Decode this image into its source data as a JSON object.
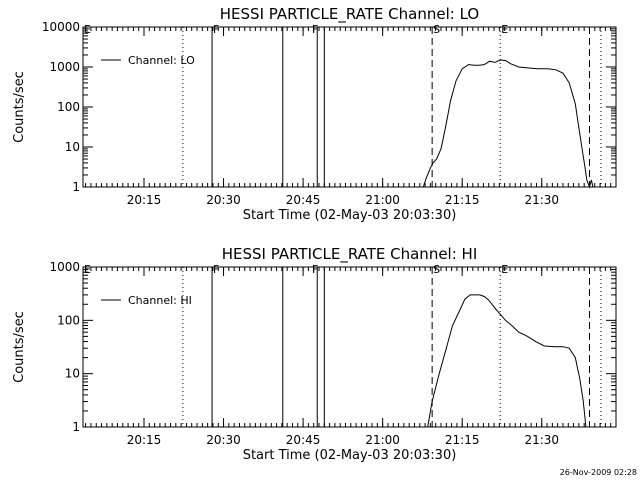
{
  "footer": {
    "timestamp": "26-Nov-2009 02:28"
  },
  "chart_data": [
    {
      "type": "line",
      "title": "HESSI PARTICLE_RATE Channel: LO",
      "xlabel": "Start Time (02-May-03 20:03:30)",
      "ylabel": "Counts/sec",
      "yscale": "log",
      "ylim": [
        1,
        10000
      ],
      "xlim": [
        "20:03:30",
        "21:44:00"
      ],
      "x_ticks": [
        "20:15",
        "20:30",
        "20:45",
        "21:00",
        "21:15",
        "21:30"
      ],
      "y_ticks": [
        "1",
        "10",
        "100",
        "1000",
        "10000"
      ],
      "grid": false,
      "legend": {
        "position": "top-left",
        "entries": [
          "Channel: LO"
        ]
      },
      "flag_labels": [
        {
          "text": "E",
          "x": "20:03:30"
        },
        {
          "text": "F",
          "x": "20:27:50"
        },
        {
          "text": "F",
          "x": "20:46:30"
        },
        {
          "text": "S",
          "x": "21:09:20"
        },
        {
          "text": "E",
          "x": "21:22:10"
        }
      ],
      "markers": [
        {
          "x": "20:22:20",
          "style": "dotted"
        },
        {
          "x": "20:27:50",
          "style": "solid"
        },
        {
          "x": "20:41:10",
          "style": "solid"
        },
        {
          "x": "20:47:40",
          "style": "solid"
        },
        {
          "x": "20:49:00",
          "style": "solid"
        },
        {
          "x": "21:09:20",
          "style": "dashed"
        },
        {
          "x": "21:22:10",
          "style": "dotted"
        },
        {
          "x": "21:39:00",
          "style": "dashed"
        },
        {
          "x": "21:41:10",
          "style": "dotted"
        }
      ],
      "series": [
        {
          "name": "Channel: LO",
          "x": [
            "21:07:40",
            "21:08:10",
            "21:09:00",
            "21:09:30",
            "21:10:10",
            "21:11:00",
            "21:11:50",
            "21:12:50",
            "21:13:50",
            "21:15:00",
            "21:16:10",
            "21:17:20",
            "21:18:10",
            "21:19:10",
            "21:20:10",
            "21:21:10",
            "21:22:10",
            "21:23:10",
            "21:24:10",
            "21:25:40",
            "21:27:20",
            "21:29:10",
            "21:31:10",
            "21:32:40",
            "21:34:00",
            "21:35:10",
            "21:36:20",
            "21:37:00",
            "21:37:40",
            "21:38:10",
            "21:38:30",
            "21:39:00",
            "21:39:20",
            "21:39:40"
          ],
          "y": [
            1,
            1.6,
            3,
            4,
            5,
            9,
            30,
            150,
            450,
            900,
            1150,
            1100,
            1100,
            1150,
            1400,
            1300,
            1500,
            1450,
            1200,
            1000,
            950,
            900,
            900,
            850,
            700,
            400,
            120,
            30,
            8,
            3,
            1.5,
            1,
            1.5,
            1
          ]
        }
      ]
    },
    {
      "type": "line",
      "title": "HESSI PARTICLE_RATE Channel: HI",
      "xlabel": "Start Time (02-May-03 20:03:30)",
      "ylabel": "Counts/sec",
      "yscale": "log",
      "ylim": [
        1,
        1000
      ],
      "xlim": [
        "20:03:30",
        "21:44:00"
      ],
      "x_ticks": [
        "20:15",
        "20:30",
        "20:45",
        "21:00",
        "21:15",
        "21:30"
      ],
      "y_ticks": [
        "1",
        "10",
        "100",
        "1000"
      ],
      "grid": false,
      "legend": {
        "position": "top-left",
        "entries": [
          "Channel: HI"
        ]
      },
      "flag_labels": [
        {
          "text": "E",
          "x": "20:03:30"
        },
        {
          "text": "F",
          "x": "20:27:50"
        },
        {
          "text": "F",
          "x": "20:46:30"
        },
        {
          "text": "S",
          "x": "21:09:20"
        },
        {
          "text": "E",
          "x": "21:22:10"
        }
      ],
      "markers": [
        {
          "x": "20:22:20",
          "style": "dotted"
        },
        {
          "x": "20:27:50",
          "style": "solid"
        },
        {
          "x": "20:41:10",
          "style": "solid"
        },
        {
          "x": "20:47:40",
          "style": "solid"
        },
        {
          "x": "20:49:00",
          "style": "solid"
        },
        {
          "x": "21:09:20",
          "style": "dashed"
        },
        {
          "x": "21:22:10",
          "style": "dotted"
        },
        {
          "x": "21:39:00",
          "style": "dashed"
        },
        {
          "x": "21:41:10",
          "style": "dotted"
        }
      ],
      "series": [
        {
          "name": "Channel: HI",
          "x": [
            "21:08:30",
            "21:09:20",
            "21:10:40",
            "21:12:00",
            "21:13:10",
            "21:14:30",
            "21:15:30",
            "21:16:30",
            "21:17:20",
            "21:18:20",
            "21:19:10",
            "21:20:00",
            "21:21:10",
            "21:22:10",
            "21:23:10",
            "21:24:20",
            "21:25:40",
            "21:27:20",
            "21:28:50",
            "21:30:30",
            "21:32:30",
            "21:34:00",
            "21:35:10",
            "21:36:20",
            "21:37:10",
            "21:37:50",
            "21:38:20"
          ],
          "y": [
            1,
            3,
            10,
            30,
            80,
            150,
            250,
            300,
            300,
            300,
            280,
            240,
            170,
            130,
            100,
            80,
            60,
            50,
            40,
            33,
            32,
            32,
            30,
            20,
            8,
            3,
            1
          ]
        }
      ]
    }
  ]
}
